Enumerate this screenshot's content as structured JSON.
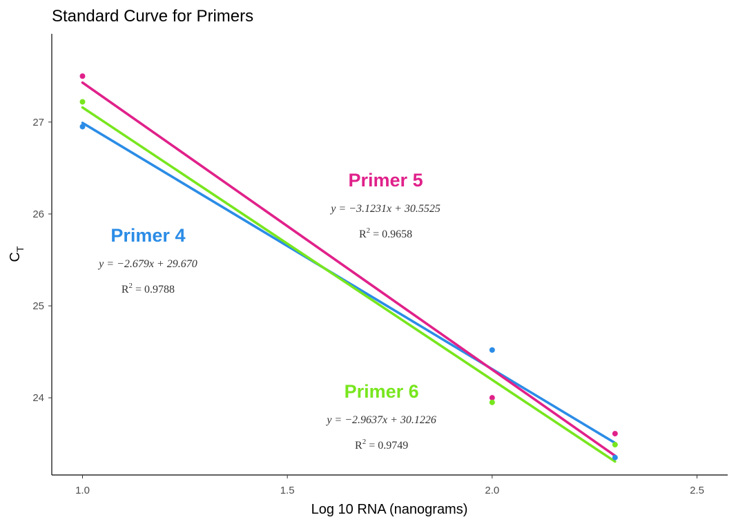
{
  "chart_data": {
    "type": "scatter",
    "title": "Standard Curve for Primers",
    "xlabel": "Log 10 RNA (nanograms)",
    "ylabel": "C",
    "ylabel_subscript": "T",
    "xlim": [
      0.925,
      2.575
    ],
    "ylim": [
      23.16,
      27.96
    ],
    "xticks": [
      1.0,
      1.5,
      2.0,
      2.5
    ],
    "xtick_labels": [
      "1.0",
      "1.5",
      "2.0",
      "2.5"
    ],
    "yticks": [
      24,
      25,
      26,
      27
    ],
    "ytick_labels": [
      "24",
      "25",
      "26",
      "27"
    ],
    "grid": false,
    "series": [
      {
        "name": "Primer 4",
        "color": "#2b8ce6",
        "points": [
          [
            1.0,
            26.95
          ],
          [
            2.0,
            24.52
          ],
          [
            2.3,
            23.35
          ]
        ],
        "fit": {
          "slope": -2.679,
          "intercept": 29.67
        },
        "equation": "y = −2.679x + 29.670",
        "r2_label": "R",
        "r2_value": " = 0.9788"
      },
      {
        "name": "Primer 5",
        "color": "#e0218a",
        "points": [
          [
            1.0,
            27.5
          ],
          [
            2.0,
            24.0
          ],
          [
            2.3,
            23.61
          ]
        ],
        "fit": {
          "slope": -3.1231,
          "intercept": 30.5525
        },
        "equation": "y = −3.1231x + 30.5525",
        "r2_label": "R",
        "r2_value": " = 0.9658"
      },
      {
        "name": "Primer 6",
        "color": "#78e61e",
        "points": [
          [
            1.0,
            27.22
          ],
          [
            2.0,
            23.95
          ],
          [
            2.3,
            23.49
          ]
        ],
        "fit": {
          "slope": -2.9637,
          "intercept": 30.1226
        },
        "equation": "y = −2.9637x + 30.1226",
        "r2_label": "R",
        "r2_value": " = 0.9749"
      }
    ],
    "annotations": [
      {
        "series": 0,
        "x": 1.16,
        "y": 25.7
      },
      {
        "series": 1,
        "x": 1.74,
        "y": 26.3
      },
      {
        "series": 2,
        "x": 1.73,
        "y": 24.0
      }
    ]
  }
}
